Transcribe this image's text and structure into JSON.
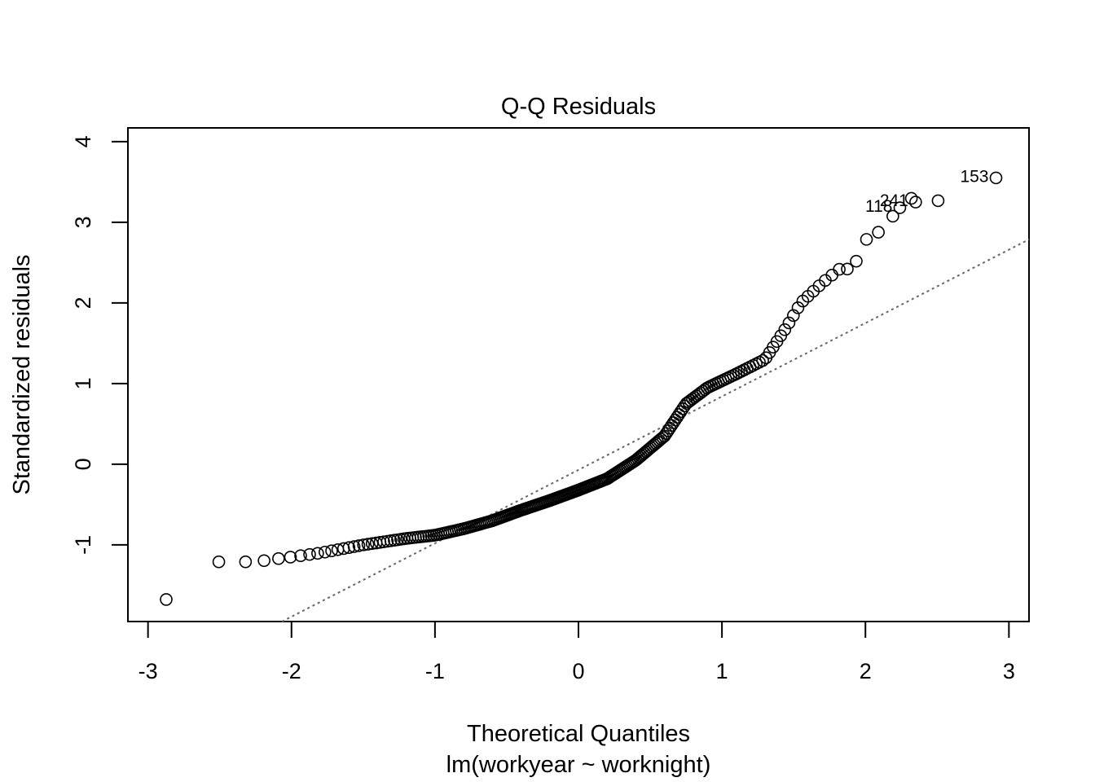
{
  "chart_data": {
    "type": "scatter",
    "title": "Q-Q Residuals",
    "xlabel": "Theoretical Quantiles",
    "xlabel2": "lm(workyear ~ worknight)",
    "ylabel": "Standardized residuals",
    "xlim": [
      -3.14,
      3.14
    ],
    "ylim": [
      -1.95,
      4.17
    ],
    "xticks": [
      -3,
      -2,
      -1,
      0,
      1,
      2,
      3
    ],
    "yticks": [
      -1,
      0,
      1,
      2,
      3,
      4
    ],
    "reference_line": {
      "intercept": -0.07,
      "slope": 0.91,
      "style": "dotted"
    },
    "labeled_points": [
      {
        "label": "153",
        "x": 2.91,
        "y": 3.55
      },
      {
        "label": "241",
        "x": 2.35,
        "y": 3.25
      },
      {
        "label": "118",
        "x": 2.24,
        "y": 3.18
      }
    ],
    "anchors": [
      [
        -2.91,
        -1.73
      ],
      [
        -2.55,
        -1.21
      ],
      [
        -2.36,
        -1.21
      ],
      [
        -2.24,
        -1.21
      ],
      [
        -2.14,
        -1.18
      ],
      [
        -2.0,
        -1.15
      ],
      [
        -1.8,
        -1.1
      ],
      [
        -1.5,
        -1.0
      ],
      [
        -1.2,
        -0.92
      ],
      [
        -1.0,
        -0.88
      ],
      [
        -0.8,
        -0.8
      ],
      [
        -0.6,
        -0.7
      ],
      [
        -0.4,
        -0.57
      ],
      [
        -0.2,
        -0.45
      ],
      [
        0.0,
        -0.32
      ],
      [
        0.2,
        -0.18
      ],
      [
        0.4,
        0.05
      ],
      [
        0.6,
        0.35
      ],
      [
        0.75,
        0.75
      ],
      [
        0.9,
        0.95
      ],
      [
        1.1,
        1.12
      ],
      [
        1.3,
        1.3
      ],
      [
        1.45,
        1.7
      ],
      [
        1.55,
        2.0
      ],
      [
        1.7,
        2.25
      ],
      [
        1.82,
        2.42
      ],
      [
        1.92,
        2.42
      ],
      [
        1.98,
        2.78
      ],
      [
        2.05,
        2.8
      ],
      [
        2.14,
        2.97
      ],
      [
        2.3,
        3.3
      ],
      [
        2.55,
        3.26
      ]
    ],
    "n_points": 246
  }
}
